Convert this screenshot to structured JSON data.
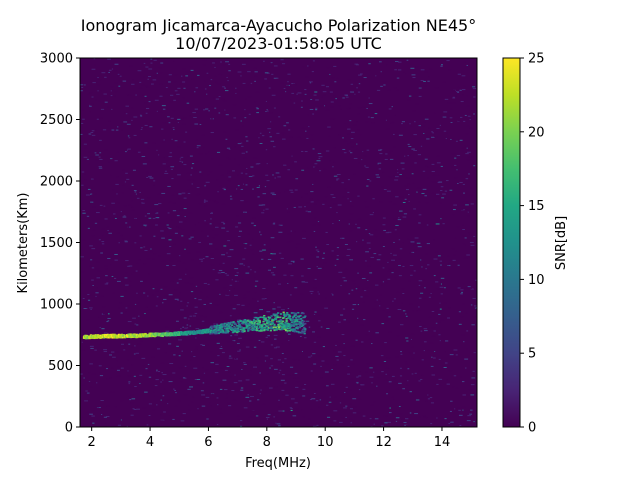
{
  "chart_data": {
    "type": "heatmap",
    "title_line1": "Ionogram Jicamarca-Ayacucho Polarization NE45°",
    "title_line2": "10/07/2023-01:58:05 UTC",
    "xlabel": "Freq(MHz)",
    "ylabel": "Kilometers(Km)",
    "colorbar_label": "SNR[dB]",
    "colormap": "viridis",
    "xlim": [
      1.6,
      15.2
    ],
    "ylim": [
      0,
      3000
    ],
    "clim": [
      0,
      25
    ],
    "x_ticks": [
      "2",
      "4",
      "6",
      "8",
      "10",
      "12",
      "14"
    ],
    "y_ticks": [
      "0",
      "500",
      "1000",
      "1500",
      "2000",
      "2500",
      "3000"
    ],
    "colorbar_ticks": [
      "0",
      "5",
      "10",
      "15",
      "20",
      "25"
    ],
    "echo_trace": [
      {
        "freq": 1.7,
        "height": 735,
        "snr": 24
      },
      {
        "freq": 2.5,
        "height": 740,
        "snr": 25
      },
      {
        "freq": 3.5,
        "height": 745,
        "snr": 24
      },
      {
        "freq": 4.5,
        "height": 755,
        "snr": 21
      },
      {
        "freq": 5.5,
        "height": 770,
        "snr": 14
      },
      {
        "freq": 6.5,
        "height": 800,
        "snr": 16
      },
      {
        "freq": 7.5,
        "height": 830,
        "snr": 18
      },
      {
        "freq": 8.5,
        "height": 860,
        "snr": 20
      },
      {
        "freq": 9.3,
        "height": 840,
        "snr": 14
      }
    ]
  }
}
